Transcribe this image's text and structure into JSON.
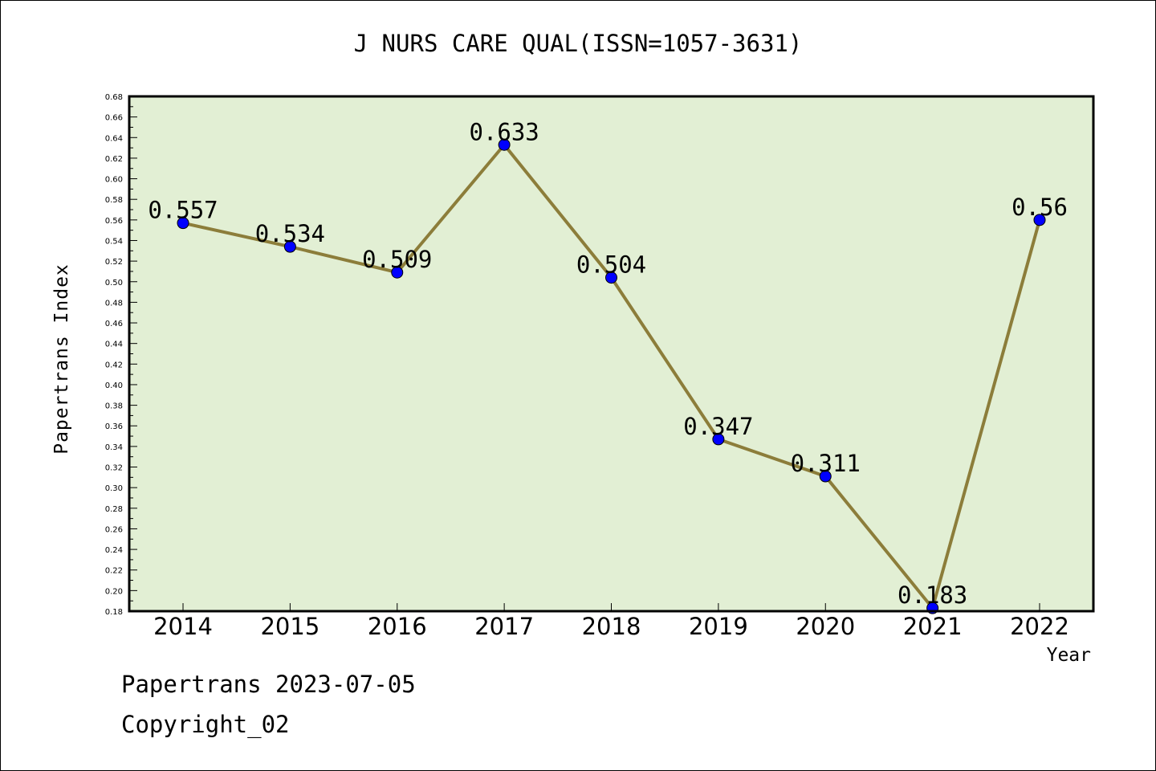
{
  "chart_data": {
    "type": "line",
    "title": "J NURS CARE QUAL(ISSN=1057-3631)",
    "xlabel": "Year",
    "ylabel": "Papertrans Index",
    "categories": [
      "2014",
      "2015",
      "2016",
      "2017",
      "2018",
      "2019",
      "2020",
      "2021",
      "2022"
    ],
    "series": [
      {
        "values": [
          0.557,
          0.534,
          0.509,
          0.633,
          0.504,
          0.347,
          0.311,
          0.183,
          0.56
        ]
      }
    ],
    "data_labels": [
      "0.557",
      "0.534",
      "0.509",
      "0.633",
      "0.504",
      "0.347",
      "0.311",
      "0.183",
      "0.56"
    ],
    "ylim": [
      0.18,
      0.68
    ],
    "yticks": [
      "0.18",
      "0.20",
      "0.22",
      "0.24",
      "0.26",
      "0.28",
      "0.30",
      "0.32",
      "0.34",
      "0.36",
      "0.38",
      "0.40",
      "0.42",
      "0.44",
      "0.46",
      "0.48",
      "0.50",
      "0.52",
      "0.54",
      "0.56",
      "0.58",
      "0.60",
      "0.62",
      "0.64",
      "0.66",
      "0.68"
    ],
    "grid": false,
    "colors": {
      "plot_background": "#e2efd4",
      "line": "#8c7d3a",
      "marker": "#0000ff"
    }
  },
  "footer": {
    "date_line": "Papertrans 2023-07-05",
    "copyright": "Copyright_02"
  }
}
